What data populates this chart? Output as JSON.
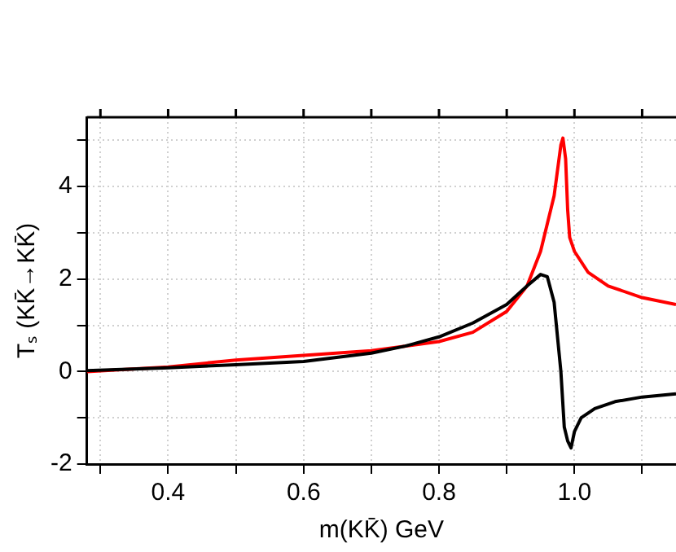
{
  "chart_data": {
    "type": "line",
    "xlabel": "m(KK̄) GeV",
    "ylabel": "Tₛ (KK̄→KK̄)",
    "xlim": [
      0.28,
      1.15
    ],
    "ylim": [
      -2,
      5.5
    ],
    "xticks": [
      {
        "value": 0.3,
        "label": null
      },
      0.4,
      {
        "value": 0.5,
        "label": null
      },
      0.6,
      {
        "value": 0.7,
        "label": null
      },
      0.8,
      {
        "value": 0.9,
        "label": null
      },
      {
        "value": 1.0,
        "label": "1.0"
      },
      {
        "value": 1.1,
        "label": null
      }
    ],
    "yticks": [
      -2,
      {
        "value": -1,
        "label": null
      },
      0,
      {
        "value": 1,
        "label": null
      },
      2,
      {
        "value": 3,
        "label": null
      },
      4,
      {
        "value": 5,
        "label": null
      }
    ],
    "grid": true,
    "legend": false,
    "marker": "none",
    "line_style": "solid",
    "series": [
      {
        "color": "#000000",
        "x": [
          0.28,
          0.4,
          0.5,
          0.6,
          0.7,
          0.75,
          0.8,
          0.85,
          0.9,
          0.93,
          0.95,
          0.96,
          0.97,
          0.98,
          0.985,
          0.99,
          0.995,
          1.0,
          1.01,
          1.03,
          1.06,
          1.1,
          1.15
        ],
        "values": [
          0.02,
          0.08,
          0.15,
          0.22,
          0.4,
          0.55,
          0.75,
          1.05,
          1.45,
          1.85,
          2.1,
          2.05,
          1.5,
          0,
          -1.2,
          -1.5,
          -1.65,
          -1.3,
          -1.0,
          -0.8,
          -0.65,
          -0.55,
          -0.48
        ]
      },
      {
        "color": "#ff0000",
        "x": [
          0.28,
          0.4,
          0.5,
          0.6,
          0.7,
          0.8,
          0.85,
          0.9,
          0.93,
          0.95,
          0.97,
          0.98,
          0.983,
          0.987,
          0.99,
          0.993,
          1.0,
          1.02,
          1.05,
          1.1,
          1.15
        ],
        "values": [
          0.0,
          0.1,
          0.25,
          0.35,
          0.45,
          0.65,
          0.85,
          1.3,
          1.85,
          2.6,
          3.8,
          4.9,
          5.05,
          4.6,
          3.5,
          2.9,
          2.6,
          2.15,
          1.85,
          1.6,
          1.45
        ]
      }
    ]
  }
}
